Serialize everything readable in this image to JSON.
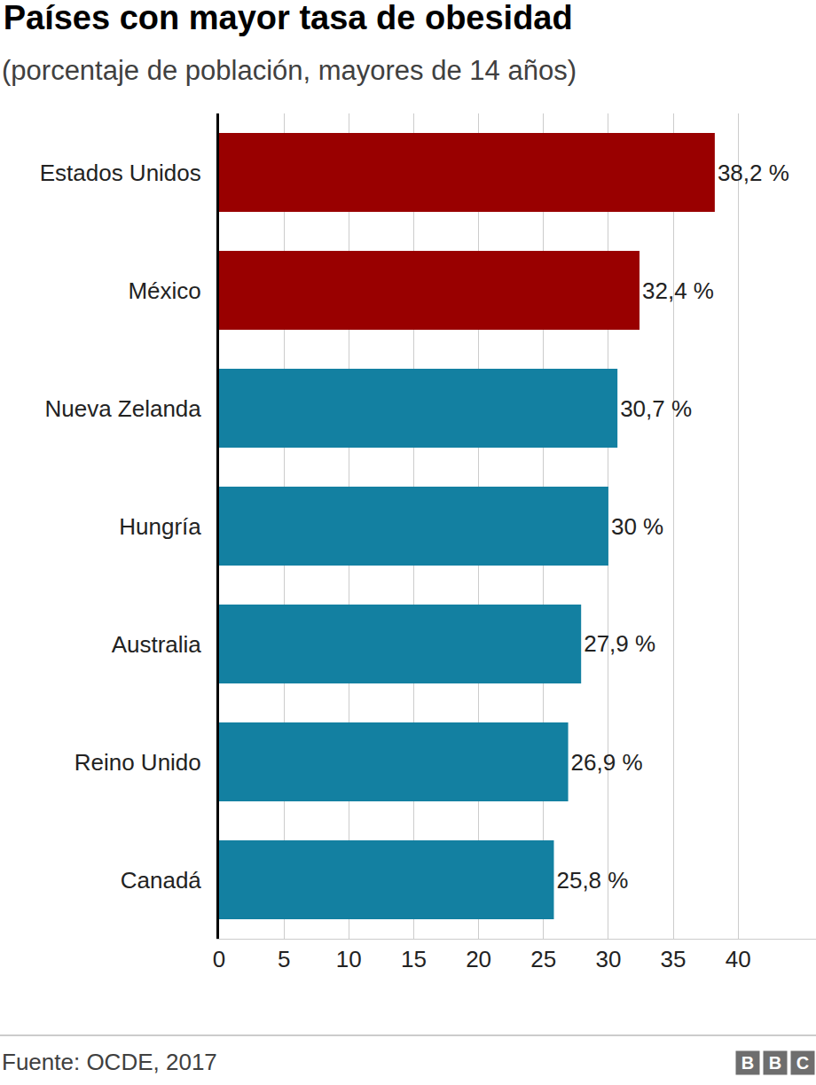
{
  "chart_data": {
    "type": "bar",
    "orientation": "horizontal",
    "title": "Países con mayor tasa de obesidad",
    "subtitle": "(porcentaje de población, mayores de 14 años)",
    "source": "Fuente: OCDE, 2017",
    "logo": "BBC",
    "categories": [
      "Estados Unidos",
      "México",
      "Nueva Zelanda",
      "Hungría",
      "Australia",
      "Reino Unido",
      "Canadá"
    ],
    "values": [
      38.2,
      32.4,
      30.7,
      30,
      27.9,
      26.9,
      25.8
    ],
    "value_labels": [
      "38,2 %",
      "32,4 %",
      "30,7 %",
      "30 %",
      "27,9 %",
      "26,9 %",
      "25,8 %"
    ],
    "colors": [
      "#990000",
      "#990000",
      "#1380A1",
      "#1380A1",
      "#1380A1",
      "#1380A1",
      "#1380A1"
    ],
    "xlim": [
      0,
      46
    ],
    "xticks": [
      0,
      5,
      10,
      15,
      20,
      25,
      30,
      35,
      40
    ],
    "grid": true,
    "data_labels": true
  }
}
